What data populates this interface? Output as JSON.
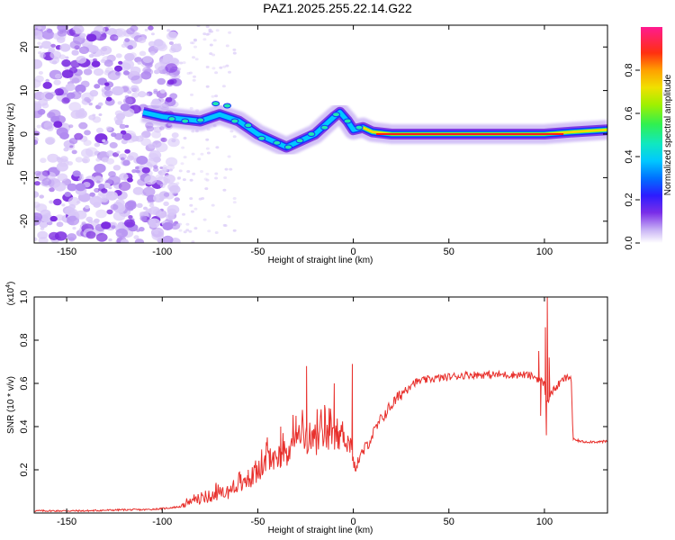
{
  "title": "PAZ1.2025.255.22.14.G22",
  "chart_data": [
    {
      "type": "heatmap",
      "name": "spectrogram",
      "title": "PAZ1.2025.255.22.14.G22",
      "xlabel": "Height of straight line (km)",
      "ylabel": "Frequency (Hz)",
      "xlim": [
        -167,
        133
      ],
      "ylim": [
        -25,
        25
      ],
      "x_ticks": [
        -150,
        -100,
        -50,
        0,
        50,
        100
      ],
      "y_ticks": [
        -20,
        -10,
        0,
        10,
        20
      ],
      "ridge": {
        "description_points_x": [
          -110,
          -100,
          -90,
          -80,
          -70,
          -60,
          -50,
          -45,
          -40,
          -35,
          -30,
          -25,
          -20,
          -15,
          -10,
          -7,
          -3,
          0,
          5,
          10,
          20,
          40,
          60,
          80,
          100,
          115,
          133
        ],
        "frequency_hz": [
          5,
          4,
          3.5,
          3,
          4.5,
          3,
          0,
          -1,
          -2,
          -3,
          -2,
          -1,
          0,
          2,
          4,
          5,
          3,
          1,
          1.5,
          0.5,
          0,
          0,
          0,
          0,
          0,
          0.5,
          1
        ]
      },
      "colorbar": {
        "label": "Normalized spectral amplitude",
        "range": [
          0,
          1
        ],
        "ticks": [
          0.0,
          0.2,
          0.4,
          0.6,
          0.8
        ],
        "tick_labels": [
          "0.0",
          "0.2",
          "0.4",
          "0.6",
          "0.8"
        ],
        "colors": [
          "#ffffff",
          "#b090f0",
          "#6010e0",
          "#1a20ff",
          "#00c8ff",
          "#20e8b0",
          "#40f040",
          "#c8f000",
          "#ffd800",
          "#ff8000",
          "#ff1a1a",
          "#ff20a0"
        ]
      }
    },
    {
      "type": "line",
      "name": "snr",
      "xlabel": "Height of straight line (km)",
      "ylabel": "SNR (10 * v/v)",
      "y_multiplier_label": "(x10",
      "y_multiplier_exp": "4",
      "y_multiplier_close": ")",
      "xlim": [
        -167,
        133
      ],
      "ylim": [
        0,
        1.0
      ],
      "x_ticks": [
        -150,
        -100,
        -50,
        0,
        50,
        100
      ],
      "y_ticks": [
        0.2,
        0.4,
        0.6,
        0.8,
        1.0
      ],
      "y_tick_labels": [
        "0.2",
        "0.4",
        "0.6",
        "0.8",
        "1.0"
      ],
      "color": "#e8302c",
      "series": [
        {
          "name": "SNR",
          "x": [
            -167,
            -140,
            -120,
            -110,
            -100,
            -95,
            -90,
            -85,
            -80,
            -75,
            -70,
            -65,
            -60,
            -55,
            -50,
            -45,
            -40,
            -35,
            -30,
            -26,
            -22,
            -20,
            -15,
            -10,
            -5,
            -1,
            0,
            5,
            10,
            15,
            20,
            25,
            30,
            35,
            40,
            50,
            60,
            70,
            80,
            90,
            95,
            100,
            101,
            103,
            110,
            114,
            115,
            120,
            133
          ],
          "y": [
            0.01,
            0.01,
            0.015,
            0.015,
            0.02,
            0.025,
            0.03,
            0.05,
            0.06,
            0.07,
            0.09,
            0.1,
            0.12,
            0.15,
            0.19,
            0.23,
            0.26,
            0.28,
            0.32,
            0.35,
            0.32,
            0.33,
            0.34,
            0.35,
            0.37,
            0.3,
            0.2,
            0.28,
            0.36,
            0.44,
            0.5,
            0.55,
            0.6,
            0.61,
            0.62,
            0.63,
            0.64,
            0.64,
            0.64,
            0.64,
            0.63,
            0.6,
            0.5,
            0.55,
            0.62,
            0.63,
            0.34,
            0.33,
            0.33
          ]
        }
      ],
      "spikes": [
        {
          "x": -72,
          "y": 0.13
        },
        {
          "x": -55,
          "y": 0.2
        },
        {
          "x": -45,
          "y": 0.35
        },
        {
          "x": -38,
          "y": 0.4
        },
        {
          "x": -30,
          "y": 0.45
        },
        {
          "x": -24.5,
          "y": 0.68
        },
        {
          "x": -15,
          "y": 0.5
        },
        {
          "x": -10,
          "y": 0.6
        },
        {
          "x": -0.5,
          "y": 0.69
        },
        {
          "x": 97,
          "y": 0.75
        },
        {
          "x": 100.5,
          "y": 0.86
        },
        {
          "x": 101.5,
          "y": 1.0
        },
        {
          "x": 102.5,
          "y": 0.72
        },
        {
          "x": 101,
          "y": 0.36
        },
        {
          "x": 98,
          "y": 0.45
        }
      ]
    }
  ]
}
